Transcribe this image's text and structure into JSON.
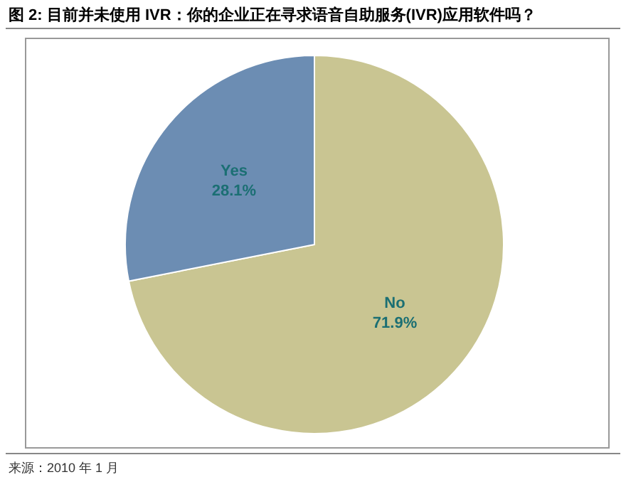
{
  "chart_data": {
    "type": "pie",
    "title": "图 2: 目前并未使用 IVR：你的企业正在寻求语音自助服务(IVR)应用软件吗？",
    "categories": [
      "No",
      "Yes"
    ],
    "values": [
      71.9,
      28.1
    ],
    "colors": [
      "#c9c592",
      "#6c8db3"
    ],
    "value_labels": [
      "71.9%",
      "28.1%"
    ],
    "legend": false,
    "annotations": [
      "来源：2010 年 1 月"
    ]
  }
}
